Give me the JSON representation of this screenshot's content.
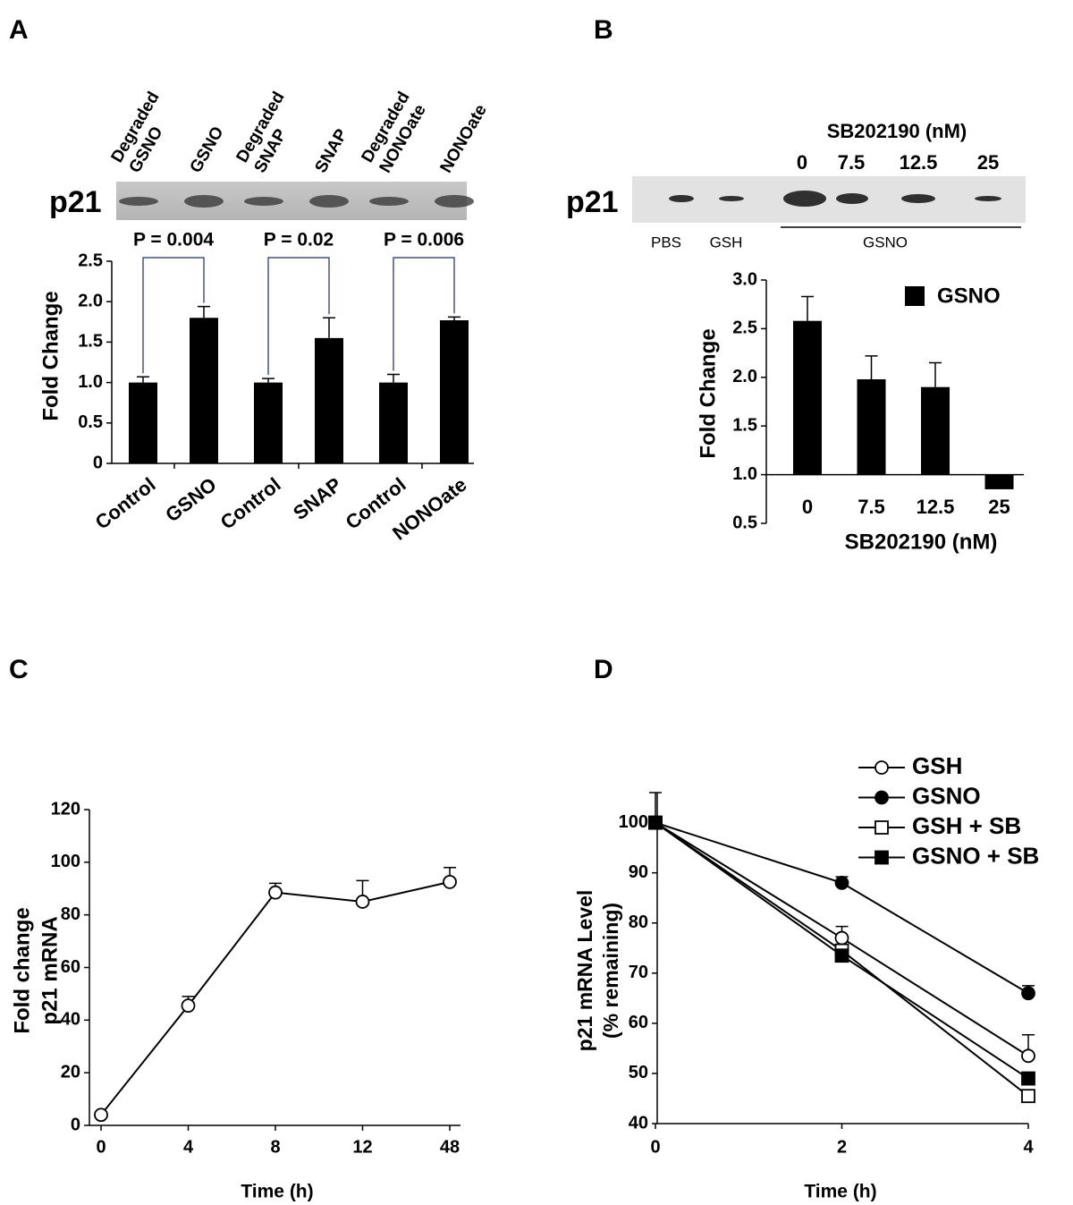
{
  "chart_data": [
    {
      "type": "bar",
      "panel_label": "A",
      "blot_label": "p21",
      "lane_labels": [
        [
          "Degraded",
          "GSNO"
        ],
        [
          "GSNO"
        ],
        [
          "Degraded",
          "SNAP"
        ],
        [
          "SNAP"
        ],
        [
          "Degraded",
          "NONOate"
        ],
        [
          "NONOate"
        ]
      ],
      "annotations": [
        "P = 0.004",
        "P = 0.02",
        "P = 0.006"
      ],
      "y_label": "Fold Change",
      "categories": [
        "Control",
        "GSNO",
        "Control",
        "SNAP",
        "Control",
        "NONOate"
      ],
      "values": [
        1.0,
        1.8,
        1.0,
        1.55,
        1.0,
        1.77
      ],
      "errors": [
        0.07,
        0.14,
        0.05,
        0.25,
        0.1,
        0.04
      ],
      "color": "#000000",
      "ylim": [
        0,
        2.5
      ],
      "yticks": [
        0,
        0.5,
        {
          "value": 1,
          "label": "1.0"
        },
        1.5,
        {
          "value": 2,
          "label": "2.0"
        },
        2.5
      ]
    },
    {
      "type": "bar",
      "panel_label": "B",
      "blot_label": "p21",
      "blot_dose_title": "SB202190 (nM)",
      "blot_doses": [
        "0",
        "7.5",
        "12.5",
        "25"
      ],
      "blot_conditions": [
        "PBS",
        "GSH",
        "GSNO"
      ],
      "y_label": "Fold Change",
      "x_label": "SB202190 (nM)",
      "x_axis_at": 1,
      "categories": [
        "0",
        "7.5",
        "12.5",
        "25"
      ],
      "series": [
        {
          "name": "GSNO",
          "color": "#000000",
          "values": [
            2.58,
            1.98,
            1.9,
            0.85
          ],
          "errors": [
            0.25,
            0.24,
            0.25,
            null
          ]
        }
      ],
      "legend": "upper right",
      "ylim": [
        0.5,
        3.0
      ],
      "yticks": [
        0.5,
        {
          "value": 1,
          "label": "1.0"
        },
        1.5,
        {
          "value": 2,
          "label": "2.0"
        },
        2.5,
        {
          "value": 3,
          "label": "3.0"
        }
      ]
    },
    {
      "type": "line",
      "panel_label": "C",
      "y_label": [
        "Fold change",
        "p21  mRNA"
      ],
      "x_label": "Time (h)",
      "categories": [
        "0",
        "4",
        "8",
        "12",
        "48"
      ],
      "series": [
        {
          "name": null,
          "color": "#000000",
          "marker": "circle-open",
          "values": [
            4,
            45.5,
            88.5,
            85,
            92.5
          ],
          "errors": [
            null,
            3.5,
            3.5,
            8,
            5.5
          ]
        }
      ],
      "ylim": [
        0,
        120
      ],
      "yticks": [
        0,
        20,
        40,
        60,
        80,
        100,
        120
      ]
    },
    {
      "type": "line",
      "panel_label": "D",
      "y_label": [
        "p21 mRNA Level",
        "(% remaining)"
      ],
      "x_label": "Time (h)",
      "x": [
        0,
        2,
        4
      ],
      "xlim": [
        0,
        4
      ],
      "xticks": [
        0,
        2,
        4
      ],
      "series": [
        {
          "name": "GSH",
          "color": "#000000",
          "marker": "circle-open",
          "values": [
            100,
            77,
            53.5
          ],
          "errors": [
            6,
            2.3,
            4.2
          ]
        },
        {
          "name": "GSNO",
          "color": "#000000",
          "marker": "circle-filled",
          "values": [
            100,
            88,
            66
          ],
          "errors": [
            null,
            1.2,
            1.5
          ]
        },
        {
          "name": "GSH + SB",
          "color": "#000000",
          "marker": "square-open",
          "values": [
            100,
            74.5,
            45.5
          ],
          "errors": [
            null,
            null,
            null
          ]
        },
        {
          "name": "GSNO + SB",
          "color": "#000000",
          "marker": "square-filled",
          "values": [
            100,
            73.5,
            49
          ],
          "errors": [
            null,
            null,
            null
          ]
        }
      ],
      "legend": "upper right",
      "ylim": [
        40,
        106
      ],
      "yticks": [
        40,
        50,
        60,
        70,
        80,
        90,
        100
      ]
    }
  ]
}
